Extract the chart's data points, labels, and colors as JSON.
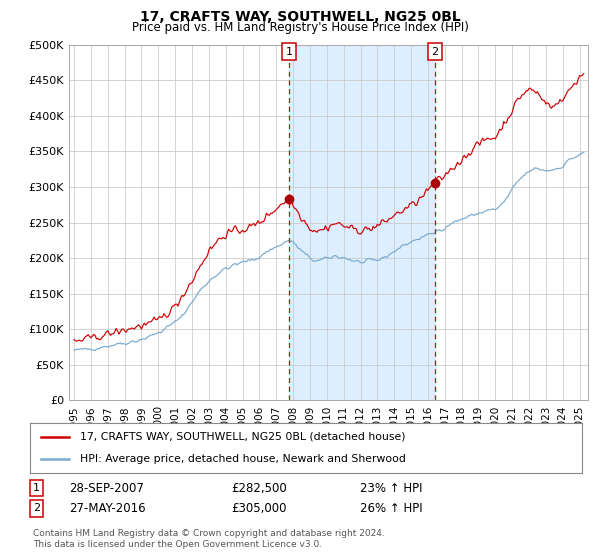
{
  "title": "17, CRAFTS WAY, SOUTHWELL, NG25 0BL",
  "subtitle": "Price paid vs. HM Land Registry's House Price Index (HPI)",
  "ylim": [
    0,
    500000
  ],
  "yticks": [
    0,
    50000,
    100000,
    150000,
    200000,
    250000,
    300000,
    350000,
    400000,
    450000,
    500000
  ],
  "ytick_labels": [
    "£0",
    "£50K",
    "£100K",
    "£150K",
    "£200K",
    "£250K",
    "£300K",
    "£350K",
    "£400K",
    "£450K",
    "£500K"
  ],
  "xlim_start": 1994.7,
  "xlim_end": 2025.5,
  "xtick_years": [
    1995,
    1996,
    1997,
    1998,
    1999,
    2000,
    2001,
    2002,
    2003,
    2004,
    2005,
    2006,
    2007,
    2008,
    2009,
    2010,
    2011,
    2012,
    2013,
    2014,
    2015,
    2016,
    2017,
    2018,
    2019,
    2020,
    2021,
    2022,
    2023,
    2024,
    2025
  ],
  "sale1_x": 2007.75,
  "sale1_y": 282500,
  "sale1_label": "1",
  "sale2_x": 2016.42,
  "sale2_y": 305000,
  "sale2_label": "2",
  "shaded_start": 2007.75,
  "shaded_end": 2016.42,
  "red_line_color": "#cc0000",
  "blue_line_color": "#7aaacf",
  "point_color": "#aa0000",
  "shaded_color": "#ddeeff",
  "vline_color": "#cc0000",
  "grid_color": "#cccccc",
  "background_color": "#ffffff",
  "legend_entries": [
    "17, CRAFTS WAY, SOUTHWELL, NG25 0BL (detached house)",
    "HPI: Average price, detached house, Newark and Sherwood"
  ],
  "annotation1_date": "28-SEP-2007",
  "annotation1_price": "£282,500",
  "annotation1_hpi": "23% ↑ HPI",
  "annotation2_date": "27-MAY-2016",
  "annotation2_price": "£305,000",
  "annotation2_hpi": "26% ↑ HPI",
  "footer": "Contains HM Land Registry data © Crown copyright and database right 2024.\nThis data is licensed under the Open Government Licence v3.0."
}
